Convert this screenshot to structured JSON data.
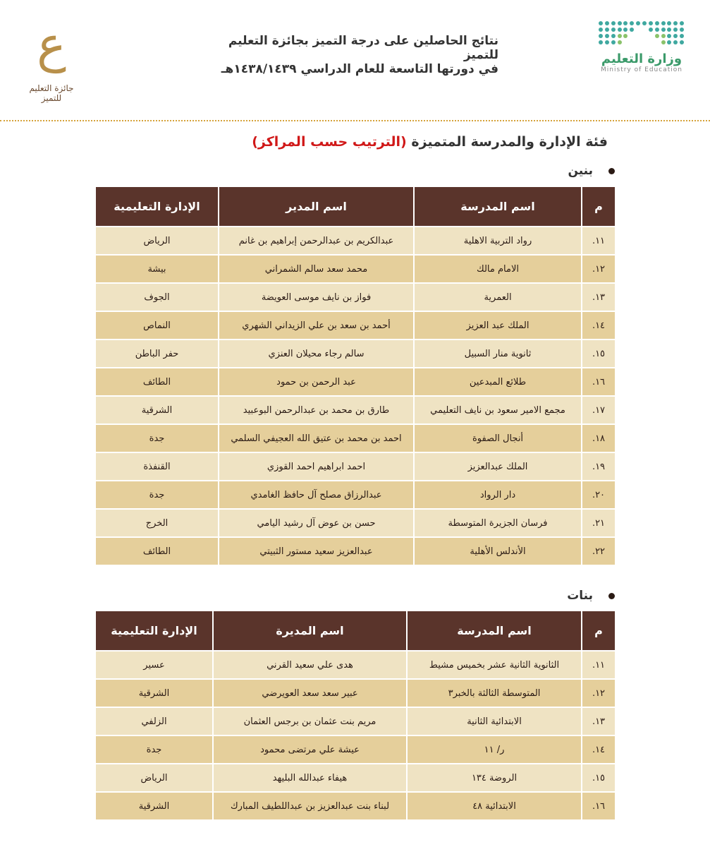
{
  "header": {
    "title_line1": "نتائج الحاصلين على درجة التميز بجائزة التعليم للتميز",
    "title_line2": "في دورتها التاسعة للعام الدراسي ١٤٣٨/١٤٣٩هـ",
    "ministry_ar": "وزارة التعليم",
    "ministry_en": "Ministry of Education",
    "award_logo_text": "جائزة التعليم للتميز"
  },
  "section": {
    "title": "فئة الإدارة والمدرسة المتميزة ",
    "title_highlight": "(الترتيب حسب المراكز)",
    "highlight_color": "#d01818"
  },
  "boys": {
    "label": "بنين",
    "columns": [
      "م",
      "اسم المدرسة",
      "اسم المدير",
      "الإدارة التعليمية"
    ],
    "rows": [
      [
        "١١.",
        "رواد التربية الاهلية",
        "عبدالكريم بن عبدالرحمن إبراهيم بن غانم",
        "الرياض"
      ],
      [
        "١٢.",
        "الامام مالك",
        "محمد سعد سالم الشمراني",
        "بيشة"
      ],
      [
        "١٣.",
        "العمرية",
        "فواز بن نايف موسى العويضة",
        "الجوف"
      ],
      [
        "١٤.",
        "الملك عبد العزيز",
        "أحمد بن سعد بن علي الزيداني الشهري",
        "النماص"
      ],
      [
        "١٥.",
        "ثانوية منار السبيل",
        "سالم رجاء محيلان العنزي",
        "حفر الباطن"
      ],
      [
        "١٦.",
        "طلائع المبدعين",
        "عبد الرحمن بن حمود",
        "الطائف"
      ],
      [
        "١٧.",
        "مجمع الامير سعود بن نايف التعليمي",
        "طارق بن محمد بن عبدالرحمن البوعبيد",
        "الشرقية"
      ],
      [
        "١٨.",
        "أنجال الصفوة",
        "احمد بن محمد بن عتيق الله العجيفي السلمي",
        "جدة"
      ],
      [
        "١٩.",
        "الملك عبدالعزيز",
        "احمد ابراهيم احمد القوزي",
        "القنفذة"
      ],
      [
        "٢٠.",
        "دار الرواد",
        "عبدالرزاق مصلح آل حافظ الغامدي",
        "جدة"
      ],
      [
        "٢١.",
        "فرسان الجزيرة المتوسطة",
        "حسن بن عوض آل رشيد اليامي",
        "الخرج"
      ],
      [
        "٢٢.",
        "الأندلس الأهلية",
        "عبدالعزيز سعيد مستور الثبيتي",
        "الطائف"
      ]
    ]
  },
  "girls": {
    "label": "بنات",
    "columns": [
      "م",
      "اسم المدرسة",
      "اسم المديرة",
      "الإدارة التعليمية"
    ],
    "rows": [
      [
        "١١.",
        "الثانوية الثانية عشر بخميس مشيط",
        "هدى علي سعيد القرني",
        "عسير"
      ],
      [
        "١٢.",
        "المتوسطة الثالثة بالخبر٣",
        "عبير سعد سعد العويرضي",
        "الشرقية"
      ],
      [
        "١٣.",
        "الابتدائية الثانية",
        "مريم بنت عثمان بن برجس العثمان",
        "الزلفي"
      ],
      [
        "١٤.",
        "ر/ ١١",
        "عيشة علي مرتضى محمود",
        "جدة"
      ],
      [
        "١٥.",
        "الروضة ١٣٤",
        "هيفاء عبدالله البليهد",
        "الرياض"
      ],
      [
        "١٦.",
        "الابتدائية ٤٨",
        "لبناء بنت عبدالعزيز بن عبداللطيف المبارك",
        "الشرقية"
      ]
    ]
  }
}
